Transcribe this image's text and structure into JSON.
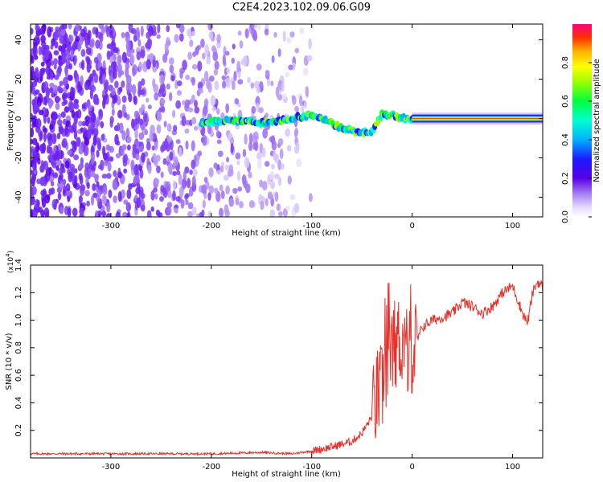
{
  "title": "C2E4.2023.102.09.06.G09",
  "chart_data": [
    {
      "type": "heatmap",
      "xlabel": "Height of straight line (km)",
      "ylabel": "Frequency (Hz)",
      "xlim": [
        -380,
        130
      ],
      "ylim": [
        -50,
        48
      ],
      "xticks": [
        -300,
        -200,
        -100,
        0,
        100
      ],
      "yticks": [
        -40,
        -20,
        0,
        20,
        40
      ],
      "colorbar": {
        "label": "Normalized spectral amplitude",
        "range": [
          0,
          1
        ],
        "ticks": [
          0.0,
          0.2,
          0.4,
          0.6,
          0.8
        ],
        "colors": [
          "#ffffff",
          "#d9c7ff",
          "#8f5cf2",
          "#5a00e6",
          "#1a1aff",
          "#00b0ff",
          "#00ffd0",
          "#00ff40",
          "#9bff00",
          "#ffff00",
          "#ffb000",
          "#ff3000",
          "#ff0080"
        ]
      },
      "signal_track": [
        {
          "x": -210,
          "f": -2
        },
        {
          "x": -180,
          "f": -1
        },
        {
          "x": -150,
          "f": -2
        },
        {
          "x": -120,
          "f": 0
        },
        {
          "x": -100,
          "f": 2
        },
        {
          "x": -90,
          "f": 0
        },
        {
          "x": -75,
          "f": -4
        },
        {
          "x": -60,
          "f": -6
        },
        {
          "x": -50,
          "f": -8
        },
        {
          "x": -40,
          "f": -6
        },
        {
          "x": -30,
          "f": 2
        },
        {
          "x": -20,
          "f": 2
        },
        {
          "x": -10,
          "f": 0
        },
        {
          "x": 0,
          "f": 0
        },
        {
          "x": 130,
          "f": 0
        }
      ],
      "noise_extent_x": [
        -380,
        -100
      ]
    },
    {
      "type": "line",
      "xlabel": "Height of straight line (km)",
      "ylabel": "SNR (10 * v/v)",
      "y_multiplier": "(x10",
      "y_multiplier_exp": "4",
      "y_multiplier_close": ")",
      "xlim": [
        -380,
        130
      ],
      "ylim": [
        0,
        1.4
      ],
      "xticks": [
        -300,
        -200,
        -100,
        0,
        100
      ],
      "yticks": [
        0.2,
        0.4,
        0.6,
        0.8,
        1.0,
        1.2,
        1.4
      ],
      "series": [
        {
          "color": "#e8302a",
          "points": [
            [
              -380,
              0.03
            ],
            [
              -300,
              0.03
            ],
            [
              -200,
              0.03
            ],
            [
              -150,
              0.04
            ],
            [
              -120,
              0.03
            ],
            [
              -100,
              0.05
            ],
            [
              -80,
              0.08
            ],
            [
              -60,
              0.12
            ],
            [
              -50,
              0.18
            ],
            [
              -40,
              0.3
            ],
            [
              -35,
              0.45
            ],
            [
              -30,
              0.5
            ],
            [
              -25,
              0.7
            ],
            [
              -20,
              0.8
            ],
            [
              -15,
              0.85
            ],
            [
              -10,
              0.85
            ],
            [
              -5,
              0.8
            ],
            [
              0,
              0.75
            ],
            [
              5,
              0.85
            ],
            [
              10,
              0.95
            ],
            [
              20,
              1.0
            ],
            [
              30,
              1.02
            ],
            [
              40,
              1.05
            ],
            [
              50,
              1.13
            ],
            [
              60,
              1.1
            ],
            [
              70,
              1.05
            ],
            [
              80,
              1.1
            ],
            [
              90,
              1.2
            ],
            [
              100,
              1.25
            ],
            [
              110,
              1.05
            ],
            [
              115,
              0.98
            ],
            [
              120,
              1.2
            ],
            [
              125,
              1.28
            ],
            [
              130,
              1.24
            ]
          ]
        }
      ]
    }
  ]
}
